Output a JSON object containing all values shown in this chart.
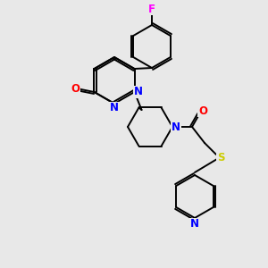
{
  "background_color": "#e8e8e8",
  "bond_color": "#000000",
  "atom_colors": {
    "N": "#0000ff",
    "O": "#ff0000",
    "S": "#cccc00",
    "F": "#ff00ff"
  },
  "figsize": [
    3.0,
    3.0
  ],
  "dpi": 100,
  "lw": 1.4,
  "fs": 8.5
}
